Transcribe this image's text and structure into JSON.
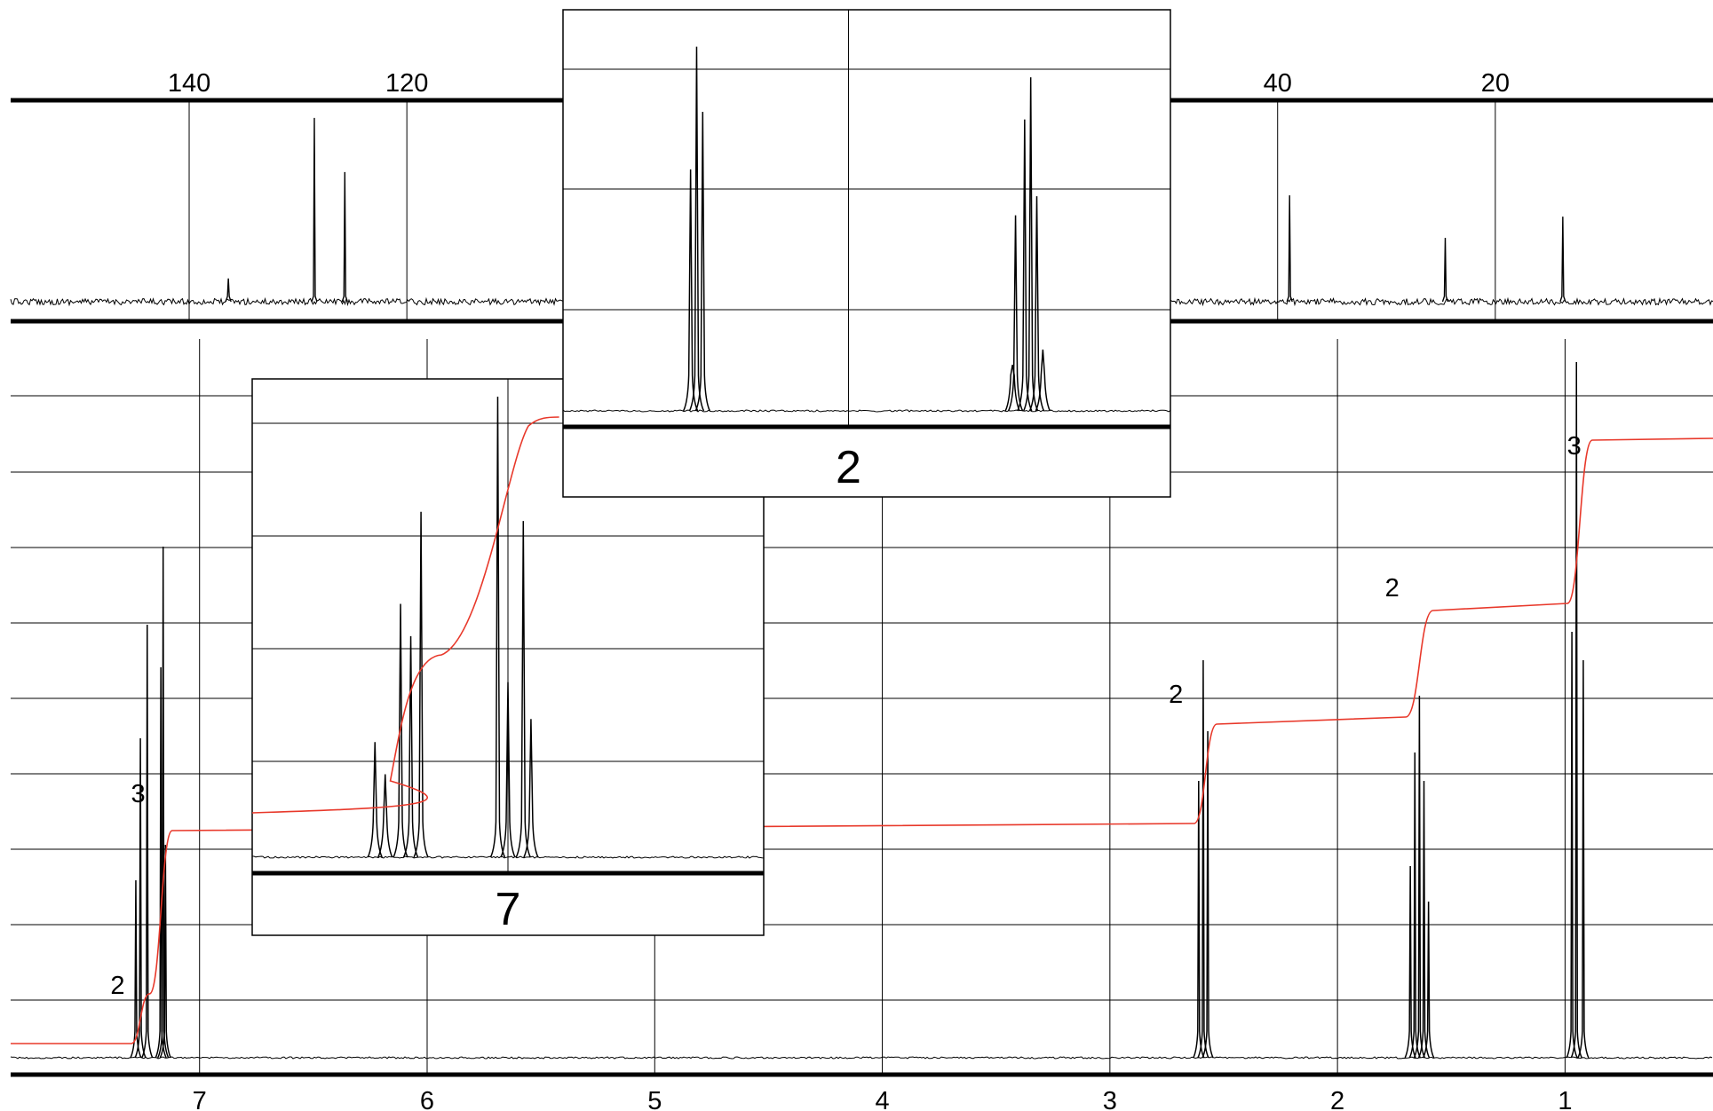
{
  "chart_data": [
    {
      "type": "line",
      "name": "13C spectrum",
      "xaxis_ticks": [
        "140",
        "120",
        "40",
        "20"
      ],
      "xaxis_tick_values": [
        140,
        120,
        40,
        20
      ],
      "xlim": [
        156.4,
        0
      ],
      "peaks": [
        {
          "x": 136.4,
          "h": 0.12
        },
        {
          "x": 128.5,
          "h": 0.95
        },
        {
          "x": 125.7,
          "h": 0.67
        },
        {
          "x": 38.9,
          "h": 0.55
        },
        {
          "x": 24.6,
          "h": 0.33
        },
        {
          "x": 13.8,
          "h": 0.44
        }
      ]
    },
    {
      "type": "line",
      "name": "1H spectrum",
      "xaxis_ticks": [
        "7",
        "6",
        "5",
        "4",
        "3",
        "2",
        "1"
      ],
      "xaxis_tick_values": [
        7,
        6,
        5,
        4,
        3,
        2,
        1
      ],
      "xlim": [
        7.83,
        0.35
      ],
      "grid": true,
      "integral_labels": [
        {
          "text": "2",
          "x": 7.36,
          "y": 0.09
        },
        {
          "text": "3",
          "x": 7.27,
          "y": 0.36
        },
        {
          "text": "2",
          "x": 2.71,
          "y": 0.5
        },
        {
          "text": "2",
          "x": 1.76,
          "y": 0.65
        },
        {
          "text": "3",
          "x": 0.96,
          "y": 0.85
        }
      ],
      "peaks": [
        {
          "x": 7.28,
          "h": 0.25
        },
        {
          "x": 7.26,
          "h": 0.45
        },
        {
          "x": 7.23,
          "h": 0.61
        },
        {
          "x": 7.17,
          "h": 0.55
        },
        {
          "x": 7.16,
          "h": 0.72
        },
        {
          "x": 7.15,
          "h": 0.3
        },
        {
          "x": 2.61,
          "h": 0.39
        },
        {
          "x": 2.59,
          "h": 0.56
        },
        {
          "x": 2.57,
          "h": 0.46
        },
        {
          "x": 1.68,
          "h": 0.27
        },
        {
          "x": 1.66,
          "h": 0.43
        },
        {
          "x": 1.64,
          "h": 0.51
        },
        {
          "x": 1.62,
          "h": 0.39
        },
        {
          "x": 1.6,
          "h": 0.22
        },
        {
          "x": 0.95,
          "h": 0.98
        },
        {
          "x": 0.97,
          "h": 0.6
        },
        {
          "x": 0.92,
          "h": 0.56
        }
      ],
      "integral_steps": [
        {
          "x0": 7.3,
          "x1": 7.22,
          "from": 0.02,
          "to": 0.09
        },
        {
          "x0": 7.22,
          "x1": 7.12,
          "from": 0.09,
          "to": 0.32
        },
        {
          "x0": 2.63,
          "x1": 2.53,
          "from": 0.33,
          "to": 0.47
        },
        {
          "x0": 1.7,
          "x1": 1.58,
          "from": 0.48,
          "to": 0.63
        },
        {
          "x0": 0.99,
          "x1": 0.88,
          "from": 0.64,
          "to": 0.87
        }
      ],
      "color": "#e8382a"
    },
    {
      "type": "line",
      "name": "inset expansion of aromatic region",
      "xaxis_tick_label": "7",
      "peaks": [
        {
          "x": 0.24,
          "h": 0.25
        },
        {
          "x": 0.26,
          "h": 0.18
        },
        {
          "x": 0.29,
          "h": 0.55
        },
        {
          "x": 0.31,
          "h": 0.48
        },
        {
          "x": 0.33,
          "h": 0.75
        },
        {
          "x": 0.48,
          "h": 1.0
        },
        {
          "x": 0.5,
          "h": 0.38
        },
        {
          "x": 0.53,
          "h": 0.73
        },
        {
          "x": 0.545,
          "h": 0.3
        }
      ]
    },
    {
      "type": "line",
      "name": "inset expansion of 2-3 ppm region",
      "xaxis_tick_label": "2",
      "peaks": [
        {
          "x": 0.21,
          "h": 0.63
        },
        {
          "x": 0.22,
          "h": 0.95
        },
        {
          "x": 0.23,
          "h": 0.78
        },
        {
          "x": 0.74,
          "h": 0.12
        },
        {
          "x": 0.745,
          "h": 0.51
        },
        {
          "x": 0.76,
          "h": 0.76
        },
        {
          "x": 0.77,
          "h": 0.87
        },
        {
          "x": 0.78,
          "h": 0.56
        },
        {
          "x": 0.79,
          "h": 0.16
        }
      ]
    }
  ]
}
